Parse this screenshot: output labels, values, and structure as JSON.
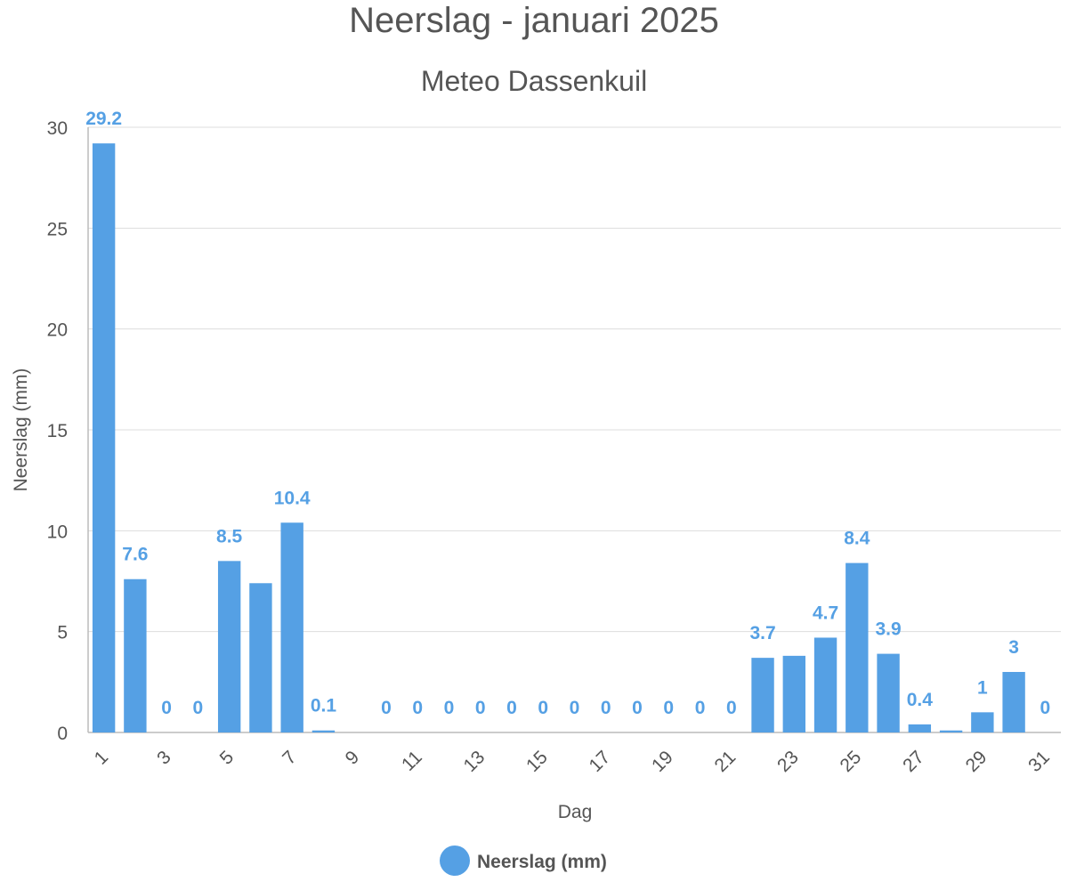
{
  "chart_data": {
    "type": "bar",
    "title": "Neerslag - januari 2025",
    "subtitle": "Meteo Dassenkuil",
    "xlabel": "Dag",
    "ylabel": "Neerslag (mm)",
    "ylim": [
      0,
      30
    ],
    "yticks": [
      0,
      5,
      10,
      15,
      20,
      25,
      30
    ],
    "grid": true,
    "legend_position": "bottom-center",
    "categories": [
      1,
      2,
      3,
      4,
      5,
      6,
      7,
      8,
      9,
      10,
      11,
      12,
      13,
      14,
      15,
      16,
      17,
      18,
      19,
      20,
      21,
      22,
      23,
      24,
      25,
      26,
      27,
      28,
      29,
      30,
      31
    ],
    "xtick_labels": [
      1,
      3,
      5,
      7,
      9,
      11,
      13,
      15,
      17,
      19,
      21,
      23,
      25,
      27,
      29,
      31
    ],
    "series": [
      {
        "name": "Neerslag (mm)",
        "color": "#55a0e4",
        "values": [
          29.2,
          7.6,
          0,
          0,
          8.5,
          7.4,
          10.4,
          0.1,
          0,
          0,
          0,
          0,
          0,
          0,
          0,
          0,
          0,
          0,
          0,
          0,
          0,
          3.7,
          3.8,
          4.7,
          8.4,
          3.9,
          0.4,
          0.1,
          1,
          3,
          0
        ],
        "data_labels": [
          "29.2",
          "7.6",
          "0",
          "0",
          "8.5",
          "",
          "10.4",
          "0.1",
          "",
          "0",
          "0",
          "0",
          "0",
          "0",
          "0",
          "0",
          "0",
          "0",
          "0",
          "0",
          "0",
          "3.7",
          "",
          "4.7",
          "8.4",
          "3.9",
          "0.4",
          "",
          "1",
          "3",
          "0"
        ]
      }
    ]
  }
}
